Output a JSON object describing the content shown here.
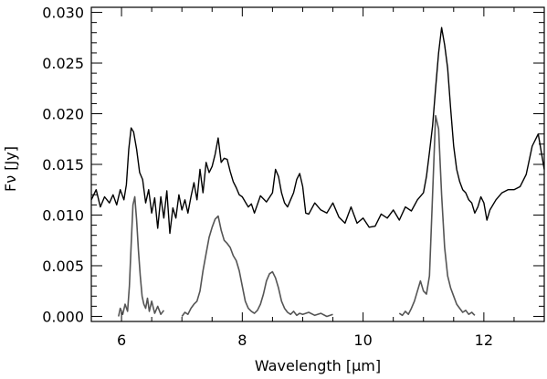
{
  "chart_data": {
    "type": "line",
    "xlabel": "Wavelength [μm]",
    "ylabel": "Fν [Jy]",
    "xlim": [
      5.5,
      13.0
    ],
    "ylim": [
      -0.0005,
      0.0305
    ],
    "xticks": [
      6,
      8,
      10,
      12
    ],
    "xtick_labels": [
      "6",
      "8",
      "10",
      "12"
    ],
    "yticks": [
      0.0,
      0.005,
      0.01,
      0.015,
      0.02,
      0.025,
      0.03
    ],
    "ytick_labels": [
      "0.000",
      "0.005",
      "0.010",
      "0.015",
      "0.020",
      "0.025",
      "0.030"
    ],
    "grid": false,
    "series": [
      {
        "color": "#000000",
        "x": [
          5.5,
          5.58,
          5.65,
          5.72,
          5.8,
          5.86,
          5.92,
          5.98,
          6.04,
          6.08,
          6.12,
          6.16,
          6.2,
          6.25,
          6.3,
          6.35,
          6.4,
          6.45,
          6.5,
          6.55,
          6.6,
          6.65,
          6.7,
          6.75,
          6.8,
          6.85,
          6.9,
          6.95,
          7.0,
          7.05,
          7.1,
          7.15,
          7.2,
          7.25,
          7.3,
          7.35,
          7.4,
          7.45,
          7.5,
          7.55,
          7.6,
          7.65,
          7.7,
          7.75,
          7.8,
          7.85,
          7.9,
          7.95,
          8.0,
          8.05,
          8.1,
          8.15,
          8.2,
          8.3,
          8.4,
          8.5,
          8.55,
          8.6,
          8.65,
          8.7,
          8.75,
          8.8,
          8.85,
          8.9,
          8.95,
          9.0,
          9.05,
          9.1,
          9.2,
          9.3,
          9.4,
          9.5,
          9.6,
          9.7,
          9.8,
          9.9,
          10.0,
          10.1,
          10.2,
          10.3,
          10.4,
          10.5,
          10.6,
          10.7,
          10.8,
          10.9,
          11.0,
          11.05,
          11.1,
          11.15,
          11.2,
          11.25,
          11.3,
          11.35,
          11.4,
          11.45,
          11.5,
          11.55,
          11.6,
          11.65,
          11.7,
          11.75,
          11.8,
          11.85,
          11.9,
          11.95,
          12.0,
          12.05,
          12.1,
          12.2,
          12.3,
          12.4,
          12.5,
          12.6,
          12.7,
          12.8,
          12.9,
          13.0
        ],
        "y": [
          0.0115,
          0.0125,
          0.0108,
          0.0118,
          0.0112,
          0.012,
          0.011,
          0.0125,
          0.0115,
          0.013,
          0.0165,
          0.0186,
          0.0182,
          0.0165,
          0.0142,
          0.0135,
          0.0112,
          0.0125,
          0.0102,
          0.0117,
          0.0087,
          0.0118,
          0.0097,
          0.0124,
          0.0082,
          0.0107,
          0.0097,
          0.012,
          0.0105,
          0.0115,
          0.0102,
          0.0118,
          0.0132,
          0.0115,
          0.0145,
          0.0122,
          0.0152,
          0.0142,
          0.0148,
          0.016,
          0.0176,
          0.0152,
          0.0156,
          0.0155,
          0.0143,
          0.0133,
          0.0127,
          0.012,
          0.0118,
          0.0113,
          0.0108,
          0.0111,
          0.0102,
          0.0119,
          0.0113,
          0.0122,
          0.0145,
          0.0138,
          0.0122,
          0.0112,
          0.0108,
          0.0115,
          0.0122,
          0.0135,
          0.0141,
          0.0128,
          0.0102,
          0.0101,
          0.0112,
          0.0105,
          0.0102,
          0.0112,
          0.0098,
          0.0092,
          0.0108,
          0.0092,
          0.0097,
          0.0088,
          0.0089,
          0.0101,
          0.0097,
          0.0105,
          0.0095,
          0.0108,
          0.0104,
          0.0115,
          0.0122,
          0.0138,
          0.0162,
          0.0188,
          0.0225,
          0.026,
          0.0285,
          0.0268,
          0.0245,
          0.0205,
          0.0168,
          0.0145,
          0.0133,
          0.0125,
          0.0122,
          0.0115,
          0.0112,
          0.0102,
          0.0108,
          0.0118,
          0.0112,
          0.0095,
          0.0105,
          0.0115,
          0.0122,
          0.0125,
          0.0125,
          0.0128,
          0.014,
          0.0168,
          0.018,
          0.0145
        ]
      },
      {
        "color": "#555555",
        "x": [
          5.95,
          5.98,
          6.02,
          6.06,
          6.1,
          6.13,
          6.16,
          6.19,
          6.22,
          6.25,
          6.28,
          6.31,
          6.34,
          6.37,
          6.4,
          6.43,
          6.46,
          6.5,
          6.55,
          6.6,
          6.65,
          6.7
        ],
        "y": [
          0.0,
          0.0008,
          0.0002,
          0.0012,
          0.0005,
          0.003,
          0.007,
          0.011,
          0.0118,
          0.0095,
          0.0065,
          0.004,
          0.002,
          0.0012,
          0.0008,
          0.0018,
          0.0005,
          0.0015,
          0.0003,
          0.001,
          0.0002,
          0.0006
        ]
      },
      {
        "color": "#555555",
        "x": [
          7.0,
          7.05,
          7.1,
          7.15,
          7.2,
          7.25,
          7.3,
          7.35,
          7.4,
          7.45,
          7.5,
          7.55,
          7.6,
          7.65,
          7.7,
          7.75,
          7.8,
          7.85,
          7.9,
          7.95,
          8.0,
          8.05,
          8.1,
          8.15,
          8.2,
          8.25,
          8.3,
          8.35,
          8.4,
          8.45,
          8.5,
          8.55,
          8.6,
          8.65,
          8.7,
          8.75,
          8.8,
          8.85,
          8.9,
          8.95,
          9.0,
          9.1,
          9.2,
          9.3,
          9.4,
          9.5
        ],
        "y": [
          0.0,
          0.0004,
          0.0002,
          0.0008,
          0.0012,
          0.0015,
          0.0025,
          0.0045,
          0.0062,
          0.0078,
          0.0088,
          0.0096,
          0.0099,
          0.0085,
          0.0075,
          0.0072,
          0.0068,
          0.006,
          0.0055,
          0.0045,
          0.003,
          0.0015,
          0.0008,
          0.0005,
          0.0003,
          0.0006,
          0.0012,
          0.0022,
          0.0035,
          0.0042,
          0.0044,
          0.0038,
          0.0028,
          0.0015,
          0.0008,
          0.0004,
          0.0002,
          0.0005,
          0.0001,
          0.0003,
          0.0002,
          0.0004,
          0.0001,
          0.0003,
          0.0,
          0.0002
        ]
      },
      {
        "color": "#555555",
        "x": [
          10.6,
          10.65,
          10.7,
          10.75,
          10.8,
          10.85,
          10.9,
          10.95,
          11.0,
          11.05,
          11.1,
          11.15,
          11.2,
          11.25,
          11.3,
          11.35,
          11.4,
          11.45,
          11.5,
          11.55,
          11.6,
          11.65,
          11.7,
          11.75,
          11.8,
          11.85
        ],
        "y": [
          0.0003,
          0.0001,
          0.0005,
          0.0002,
          0.0008,
          0.0015,
          0.0025,
          0.0035,
          0.0025,
          0.0022,
          0.004,
          0.012,
          0.0198,
          0.0185,
          0.012,
          0.0068,
          0.004,
          0.0028,
          0.002,
          0.0012,
          0.0008,
          0.0004,
          0.0006,
          0.0002,
          0.0004,
          0.0001
        ]
      }
    ]
  }
}
